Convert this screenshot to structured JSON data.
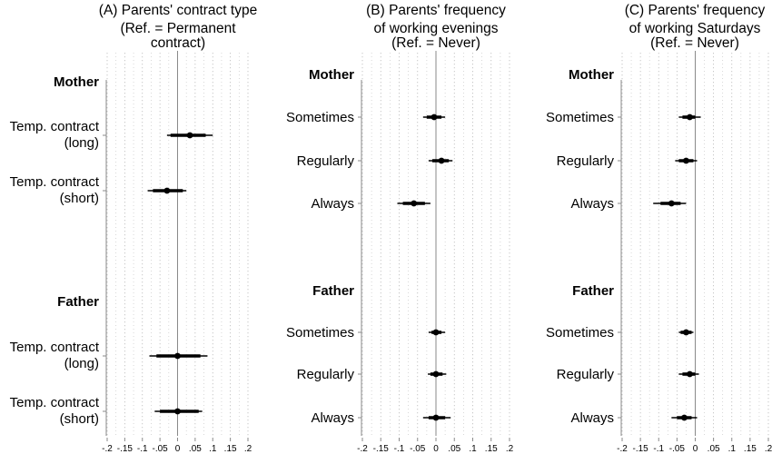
{
  "chart_data": [
    {
      "type": "coefficient-plot",
      "title_lines": [
        "(A) Parents' contract type",
        "(Ref. = Permanent",
        "contract)"
      ],
      "xlim": [
        -0.2,
        0.2
      ],
      "xticks": [
        "-.2",
        "-.15",
        "-.1",
        "-.05",
        "0",
        ".05",
        ".1",
        ".15",
        ".2"
      ],
      "groups": [
        {
          "name": "Mother",
          "rows": [
            {
              "label_lines": [
                "Temp. contract",
                "(long)"
              ],
              "estimate": 0.035,
              "ci90": [
                -0.02,
                0.08
              ],
              "ci95": [
                -0.03,
                0.1
              ]
            },
            {
              "label_lines": [
                "Temp. contract",
                "(short)"
              ],
              "estimate": -0.03,
              "ci90": [
                -0.07,
                0.015
              ],
              "ci95": [
                -0.085,
                0.025
              ]
            }
          ]
        },
        {
          "name": "Father",
          "rows": [
            {
              "label_lines": [
                "Temp. contract",
                "(long)"
              ],
              "estimate": 0.0,
              "ci90": [
                -0.06,
                0.065
              ],
              "ci95": [
                -0.08,
                0.085
              ]
            },
            {
              "label_lines": [
                "Temp. contract",
                "(short)"
              ],
              "estimate": 0.0,
              "ci90": [
                -0.05,
                0.06
              ],
              "ci95": [
                -0.065,
                0.07
              ]
            }
          ]
        }
      ]
    },
    {
      "type": "coefficient-plot",
      "title_lines": [
        "(B) Parents' frequency",
        "of working evenings",
        "(Ref. = Never)"
      ],
      "xlim": [
        -0.2,
        0.2
      ],
      "xticks": [
        "-.2",
        "-.15",
        "-.1",
        "-.05",
        "0",
        ".05",
        ".1",
        ".15",
        ".2"
      ],
      "groups": [
        {
          "name": "Mother",
          "rows": [
            {
              "label_lines": [
                "Sometimes"
              ],
              "estimate": -0.005,
              "ci90": [
                -0.025,
                0.015
              ],
              "ci95": [
                -0.035,
                0.025
              ]
            },
            {
              "label_lines": [
                "Regularly"
              ],
              "estimate": 0.015,
              "ci90": [
                -0.01,
                0.035
              ],
              "ci95": [
                -0.02,
                0.045
              ]
            },
            {
              "label_lines": [
                "Always"
              ],
              "estimate": -0.06,
              "ci90": [
                -0.09,
                -0.03
              ],
              "ci95": [
                -0.105,
                -0.015
              ]
            }
          ]
        },
        {
          "name": "Father",
          "rows": [
            {
              "label_lines": [
                "Sometimes"
              ],
              "estimate": 0.0,
              "ci90": [
                -0.012,
                0.015
              ],
              "ci95": [
                -0.02,
                0.025
              ]
            },
            {
              "label_lines": [
                "Regularly"
              ],
              "estimate": 0.0,
              "ci90": [
                -0.015,
                0.018
              ],
              "ci95": [
                -0.022,
                0.028
              ]
            },
            {
              "label_lines": [
                "Always"
              ],
              "estimate": 0.0,
              "ci90": [
                -0.02,
                0.025
              ],
              "ci95": [
                -0.035,
                0.04
              ]
            }
          ]
        }
      ]
    },
    {
      "type": "coefficient-plot",
      "title_lines": [
        "(C) Parents' frequency",
        "of working Saturdays",
        "(Ref. = Never)"
      ],
      "xlim": [
        -0.2,
        0.2
      ],
      "xticks": [
        "-.2",
        "-.15",
        "-.1",
        "-.05",
        "0",
        ".05",
        ".1",
        ".15",
        ".2"
      ],
      "groups": [
        {
          "name": "Mother",
          "rows": [
            {
              "label_lines": [
                "Sometimes"
              ],
              "estimate": -0.015,
              "ci90": [
                -0.035,
                0.0
              ],
              "ci95": [
                -0.045,
                0.015
              ]
            },
            {
              "label_lines": [
                "Regularly"
              ],
              "estimate": -0.025,
              "ci90": [
                -0.045,
                -0.005
              ],
              "ci95": [
                -0.055,
                0.005
              ]
            },
            {
              "label_lines": [
                "Always"
              ],
              "estimate": -0.065,
              "ci90": [
                -0.095,
                -0.04
              ],
              "ci95": [
                -0.115,
                -0.025
              ]
            }
          ]
        },
        {
          "name": "Father",
          "rows": [
            {
              "label_lines": [
                "Sometimes"
              ],
              "estimate": -0.025,
              "ci90": [
                -0.04,
                -0.01
              ],
              "ci95": [
                -0.045,
                -0.005
              ]
            },
            {
              "label_lines": [
                "Regularly"
              ],
              "estimate": -0.015,
              "ci90": [
                -0.035,
                0.0
              ],
              "ci95": [
                -0.045,
                0.01
              ]
            },
            {
              "label_lines": [
                "Always"
              ],
              "estimate": -0.03,
              "ci90": [
                -0.05,
                -0.01
              ],
              "ci95": [
                -0.065,
                0.005
              ]
            }
          ]
        }
      ]
    }
  ]
}
